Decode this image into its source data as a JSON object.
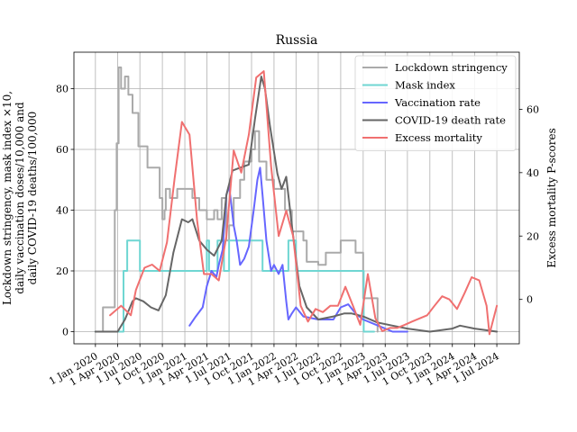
{
  "chart_data": {
    "type": "line",
    "title": "Russia",
    "ylabel_left": [
      "Lockdown stringency, mask index ×10,",
      "daily vaccination doses/10,000 and",
      "daily COVID-19 deaths/100,000"
    ],
    "ylabel_right": "Excess mortality P-scores",
    "xlabel": "",
    "grid": true,
    "legend_position": "top-right",
    "x_tick_labels": [
      "1 Jan 2020",
      "1 Apr 2020",
      "1 Jul 2020",
      "1 Oct 2020",
      "1 Jan 2021",
      "1 Apr 2021",
      "1 Jul 2021",
      "1 Oct 2021",
      "1 Jan 2022",
      "1 Apr 2022",
      "1 Jul 2022",
      "1 Oct 2022",
      "1 Jan 2023",
      "1 Apr 2023",
      "1 Jul 2023",
      "1 Oct 2023",
      "1 Jan 2024",
      "1 Apr 2024",
      "1 Jul 2024"
    ],
    "x_tick_dates": [
      "2020-01-01",
      "2020-04-01",
      "2020-07-01",
      "2020-10-01",
      "2021-01-01",
      "2021-04-01",
      "2021-07-01",
      "2021-10-01",
      "2022-01-01",
      "2022-04-01",
      "2022-07-01",
      "2022-10-01",
      "2023-01-01",
      "2023-04-01",
      "2023-07-01",
      "2023-10-01",
      "2024-01-01",
      "2024-04-01",
      "2024-07-01"
    ],
    "x_range": [
      "2019-10-05",
      "2024-10-01"
    ],
    "y_left": {
      "ticks": [
        0,
        20,
        40,
        60,
        80
      ],
      "range": [
        -4,
        92
      ]
    },
    "y_right": {
      "ticks": [
        0,
        20,
        40,
        60
      ],
      "range": [
        -14,
        78
      ]
    },
    "series": [
      {
        "name": "Lockdown stringency",
        "axis": "left",
        "color": "#aaaaaa",
        "step": true,
        "points": [
          [
            "2020-01-01",
            0
          ],
          [
            "2020-02-01",
            8
          ],
          [
            "2020-03-10",
            8
          ],
          [
            "2020-03-20",
            40
          ],
          [
            "2020-03-28",
            62
          ],
          [
            "2020-04-05",
            87
          ],
          [
            "2020-04-15",
            80
          ],
          [
            "2020-05-01",
            84
          ],
          [
            "2020-05-15",
            78
          ],
          [
            "2020-06-01",
            72
          ],
          [
            "2020-06-25",
            61
          ],
          [
            "2020-08-01",
            54
          ],
          [
            "2020-09-20",
            44
          ],
          [
            "2020-10-01",
            37
          ],
          [
            "2020-10-10",
            40
          ],
          [
            "2020-10-15",
            47
          ],
          [
            "2020-11-01",
            44
          ],
          [
            "2020-12-01",
            47
          ],
          [
            "2021-02-01",
            44
          ],
          [
            "2021-03-01",
            40
          ],
          [
            "2021-04-01",
            37
          ],
          [
            "2021-05-01",
            40
          ],
          [
            "2021-05-15",
            37
          ],
          [
            "2021-06-01",
            44
          ],
          [
            "2021-06-20",
            30
          ],
          [
            "2021-07-01",
            35
          ],
          [
            "2021-07-20",
            44
          ],
          [
            "2021-08-15",
            50
          ],
          [
            "2021-09-01",
            56
          ],
          [
            "2021-10-01",
            60
          ],
          [
            "2021-10-15",
            66
          ],
          [
            "2021-11-01",
            56
          ],
          [
            "2021-12-01",
            50
          ],
          [
            "2022-01-01",
            47
          ],
          [
            "2022-02-15",
            40
          ],
          [
            "2022-03-15",
            33
          ],
          [
            "2022-05-01",
            30
          ],
          [
            "2022-05-15",
            23
          ],
          [
            "2022-07-01",
            22
          ],
          [
            "2022-08-01",
            26
          ],
          [
            "2022-10-01",
            30
          ],
          [
            "2022-12-01",
            26
          ],
          [
            "2023-01-01",
            11
          ],
          [
            "2023-03-01",
            0
          ]
        ]
      },
      {
        "name": "Mask index",
        "axis": "left",
        "color": "#6fd6d2",
        "step": true,
        "points": [
          [
            "2020-01-01",
            0
          ],
          [
            "2020-04-25",
            20
          ],
          [
            "2020-05-10",
            30
          ],
          [
            "2020-07-01",
            20
          ],
          [
            "2021-04-01",
            30
          ],
          [
            "2021-04-10",
            20
          ],
          [
            "2021-05-15",
            30
          ],
          [
            "2021-06-10",
            20
          ],
          [
            "2021-07-01",
            30
          ],
          [
            "2021-11-01",
            30
          ],
          [
            "2021-11-15",
            20
          ],
          [
            "2022-03-01",
            30
          ],
          [
            "2022-04-01",
            20
          ],
          [
            "2023-01-01",
            20
          ],
          [
            "2023-01-03",
            0
          ],
          [
            "2023-02-15",
            0
          ]
        ]
      },
      {
        "name": "Vaccination rate",
        "axis": "left",
        "color": "#6666ff",
        "step": false,
        "points": [
          [
            "2021-01-20",
            2
          ],
          [
            "2021-02-15",
            5
          ],
          [
            "2021-03-15",
            8
          ],
          [
            "2021-04-01",
            15
          ],
          [
            "2021-04-20",
            20
          ],
          [
            "2021-05-10",
            18
          ],
          [
            "2021-05-20",
            22
          ],
          [
            "2021-06-05",
            27
          ],
          [
            "2021-06-20",
            45
          ],
          [
            "2021-07-01",
            48
          ],
          [
            "2021-07-10",
            42
          ],
          [
            "2021-07-20",
            35
          ],
          [
            "2021-08-01",
            30
          ],
          [
            "2021-08-15",
            22
          ],
          [
            "2021-09-01",
            24
          ],
          [
            "2021-09-20",
            28
          ],
          [
            "2021-10-10",
            40
          ],
          [
            "2021-10-25",
            50
          ],
          [
            "2021-11-05",
            54
          ],
          [
            "2021-11-15",
            45
          ],
          [
            "2021-12-01",
            30
          ],
          [
            "2021-12-20",
            20
          ],
          [
            "2022-01-01",
            22
          ],
          [
            "2022-01-20",
            19
          ],
          [
            "2022-02-05",
            22
          ],
          [
            "2022-02-20",
            10
          ],
          [
            "2022-03-01",
            4
          ],
          [
            "2022-03-15",
            6
          ],
          [
            "2022-04-01",
            8
          ],
          [
            "2022-05-01",
            5
          ],
          [
            "2022-07-01",
            4
          ],
          [
            "2022-09-01",
            4
          ],
          [
            "2022-10-01",
            8
          ],
          [
            "2022-11-01",
            9
          ],
          [
            "2022-12-01",
            6
          ],
          [
            "2023-01-01",
            4
          ],
          [
            "2023-02-01",
            3
          ],
          [
            "2023-04-01",
            1
          ],
          [
            "2023-05-01",
            0
          ],
          [
            "2023-07-01",
            0
          ]
        ]
      },
      {
        "name": "COVID-19 death rate",
        "axis": "left",
        "color": "#666666",
        "step": false,
        "points": [
          [
            "2020-01-01",
            0
          ],
          [
            "2020-04-01",
            0
          ],
          [
            "2020-05-01",
            4
          ],
          [
            "2020-06-01",
            10
          ],
          [
            "2020-06-15",
            11
          ],
          [
            "2020-07-15",
            10
          ],
          [
            "2020-08-15",
            8
          ],
          [
            "2020-09-15",
            7
          ],
          [
            "2020-10-15",
            12
          ],
          [
            "2020-11-15",
            26
          ],
          [
            "2020-12-20",
            37
          ],
          [
            "2021-01-15",
            36
          ],
          [
            "2021-02-01",
            37
          ],
          [
            "2021-03-01",
            30
          ],
          [
            "2021-04-01",
            27
          ],
          [
            "2021-05-01",
            25
          ],
          [
            "2021-06-01",
            30
          ],
          [
            "2021-06-20",
            45
          ],
          [
            "2021-07-15",
            53
          ],
          [
            "2021-08-15",
            54
          ],
          [
            "2021-09-20",
            55
          ],
          [
            "2021-10-15",
            70
          ],
          [
            "2021-11-10",
            84
          ],
          [
            "2021-11-25",
            80
          ],
          [
            "2021-12-15",
            68
          ],
          [
            "2022-01-15",
            52
          ],
          [
            "2022-02-01",
            47
          ],
          [
            "2022-02-20",
            51
          ],
          [
            "2022-03-15",
            35
          ],
          [
            "2022-04-15",
            15
          ],
          [
            "2022-05-15",
            8
          ],
          [
            "2022-07-01",
            4
          ],
          [
            "2022-09-01",
            5
          ],
          [
            "2022-10-15",
            6
          ],
          [
            "2022-11-15",
            6
          ],
          [
            "2023-01-01",
            5
          ],
          [
            "2023-03-01",
            3
          ],
          [
            "2023-05-01",
            2
          ],
          [
            "2023-07-01",
            1
          ],
          [
            "2023-10-01",
            0
          ],
          [
            "2024-01-01",
            1
          ],
          [
            "2024-02-01",
            2
          ],
          [
            "2024-04-01",
            1
          ],
          [
            "2024-07-01",
            0
          ]
        ]
      },
      {
        "name": "Excess mortality",
        "axis": "right",
        "color": "#f07070",
        "step": false,
        "points": [
          [
            "2020-03-01",
            -5
          ],
          [
            "2020-04-15",
            -2
          ],
          [
            "2020-05-25",
            -5
          ],
          [
            "2020-06-15",
            3
          ],
          [
            "2020-07-20",
            10
          ],
          [
            "2020-08-20",
            11
          ],
          [
            "2020-09-20",
            9
          ],
          [
            "2020-10-20",
            18
          ],
          [
            "2020-11-20",
            38
          ],
          [
            "2020-12-20",
            56
          ],
          [
            "2021-01-20",
            52
          ],
          [
            "2021-02-20",
            25
          ],
          [
            "2021-03-20",
            8
          ],
          [
            "2021-04-20",
            8
          ],
          [
            "2021-05-20",
            6
          ],
          [
            "2021-06-20",
            20
          ],
          [
            "2021-07-20",
            47
          ],
          [
            "2021-08-20",
            40
          ],
          [
            "2021-09-20",
            52
          ],
          [
            "2021-10-20",
            70
          ],
          [
            "2021-11-20",
            72
          ],
          [
            "2021-12-20",
            42
          ],
          [
            "2022-01-20",
            20
          ],
          [
            "2022-02-20",
            28
          ],
          [
            "2022-03-20",
            20
          ],
          [
            "2022-04-20",
            -2
          ],
          [
            "2022-05-20",
            -7
          ],
          [
            "2022-06-20",
            -3
          ],
          [
            "2022-07-20",
            -4
          ],
          [
            "2022-08-20",
            -2
          ],
          [
            "2022-09-20",
            -2
          ],
          [
            "2022-10-20",
            4
          ],
          [
            "2022-11-20",
            -2
          ],
          [
            "2022-12-20",
            -8
          ],
          [
            "2023-01-20",
            8
          ],
          [
            "2023-02-20",
            -6
          ],
          [
            "2023-03-20",
            -10
          ],
          [
            "2023-04-20",
            -9
          ],
          [
            "2023-05-20",
            -9
          ],
          [
            "2023-06-20",
            -8
          ],
          [
            "2023-07-20",
            -7
          ],
          [
            "2023-08-20",
            -6
          ],
          [
            "2023-09-20",
            -5
          ],
          [
            "2023-10-20",
            -2
          ],
          [
            "2023-11-20",
            1
          ],
          [
            "2023-12-20",
            0
          ],
          [
            "2024-01-20",
            -3
          ],
          [
            "2024-02-20",
            2
          ],
          [
            "2024-03-20",
            7
          ],
          [
            "2024-04-20",
            6
          ],
          [
            "2024-05-20",
            -2
          ],
          [
            "2024-06-01",
            -11
          ],
          [
            "2024-07-01",
            -2
          ]
        ]
      }
    ]
  }
}
